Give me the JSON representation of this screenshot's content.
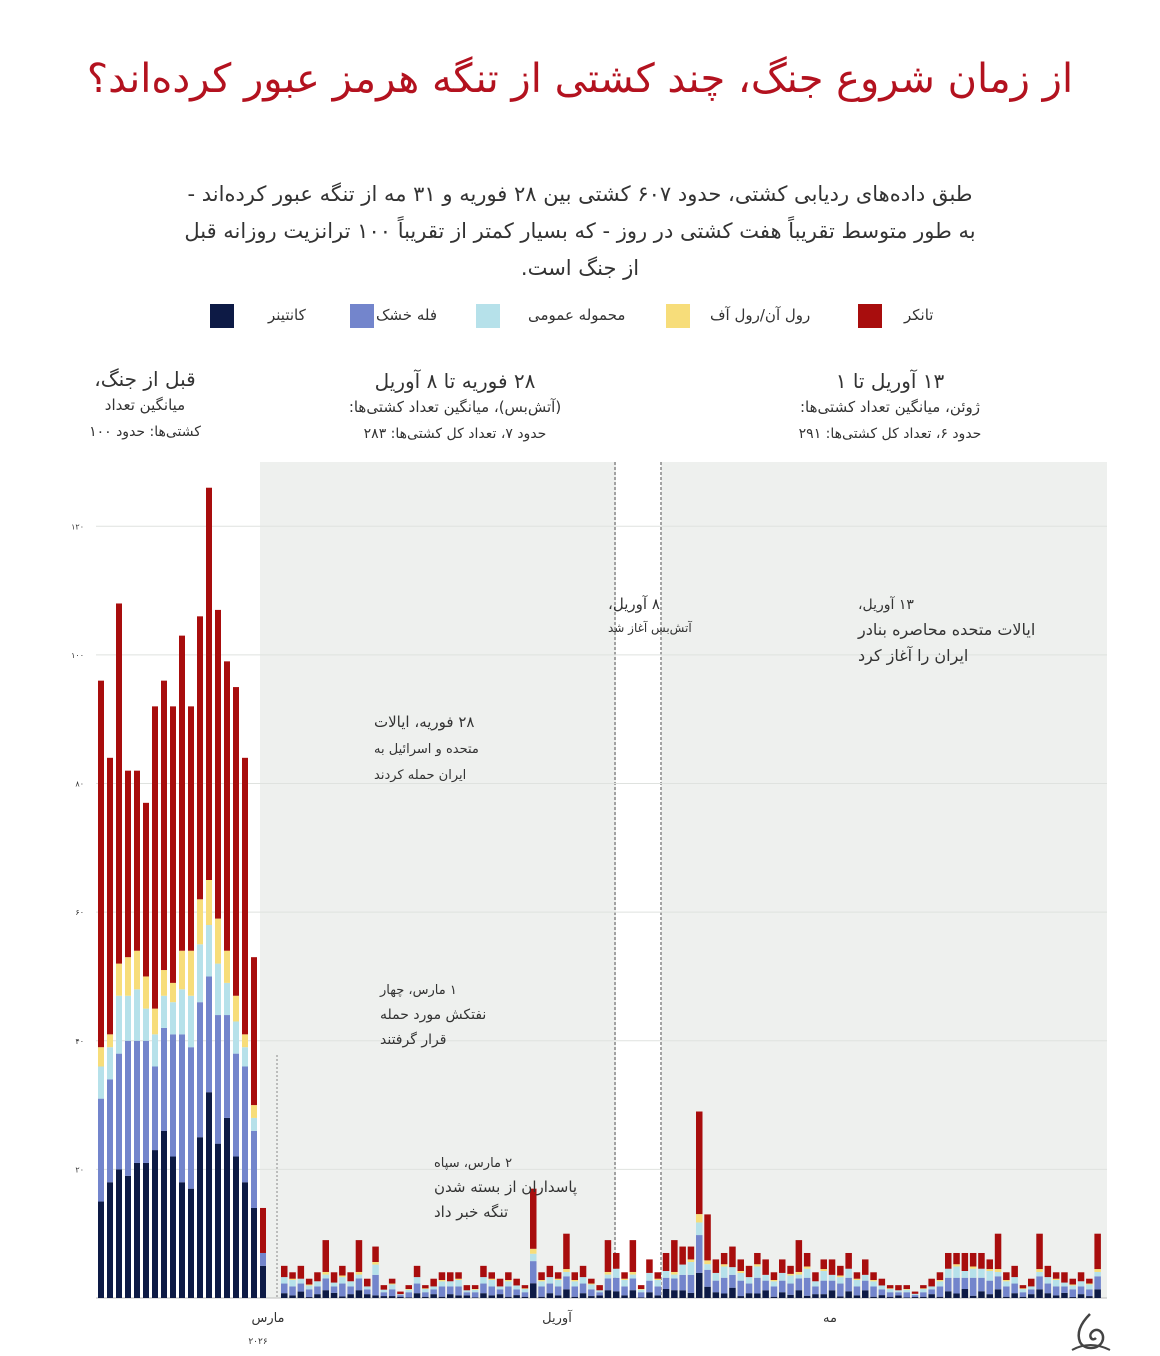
{
  "title": "از زمان شروع جنگ، چند کشتی از تنگه هرمز عبور کرده‌اند؟",
  "subtitle": "طبق داده‌های ردیابی کشتی، حدود ۶۰۷ کشتی بین ۲۸ فوریه و ۳۱ مه از تنگه عبور کرده‌اند - به طور متوسط تقریباً هفت کشتی در روز - که بسیار کمتر از تقریباً ۱۰۰ ترانزیت روزانه قبل از جنگ است.",
  "legend": [
    {
      "label": "تانکر",
      "color": "#a80d0d"
    },
    {
      "label": "رول آن/رول آف",
      "color": "#f7dd7a"
    },
    {
      "label": "محموله عمومی",
      "color": "#b6e1ea"
    },
    {
      "label": "فله خشک",
      "color": "#7385cc"
    },
    {
      "label": "کانتینر",
      "color": "#0d1a45"
    }
  ],
  "periods": [
    {
      "line1": "قبل از جنگ،",
      "line2": "میانگین تعداد",
      "line3": "کشتی‌ها: حدود ۱۰۰"
    },
    {
      "line1": "۲۸ فوریه تا ۸ آوریل",
      "line2": "(آتش‌بس)، میانگین تعداد کشتی‌ها:",
      "line3": "حدود ۷، تعداد کل کشتی‌ها: ۲۸۳"
    },
    {
      "line1": "۱۳ آوریل تا ۱",
      "line2": "ژوئن، میانگین تعداد کشتی‌ها:",
      "line3": "حدود ۶، تعداد کل کشتی‌ها: ۲۹۱"
    }
  ],
  "annotations": {
    "feb28": [
      "۲۸ فوریه، ایالات",
      "متحده و اسرائیل به",
      "ایران حمله کردند"
    ],
    "mar1": [
      "۱ مارس، چهار",
      "نفتکش مورد حمله",
      "قرار گرفتند"
    ],
    "mar2": [
      "۲ مارس، سپاه",
      "پاسداران از بسته شدن",
      "تنگه خبر داد"
    ],
    "apr8": [
      "۸ آوریل،",
      "آتش‌بس آغاز شد"
    ],
    "apr13": [
      "۱۳ آوریل،",
      "ایالات متحده محاصره بنادر",
      "ایران را آغاز کرد"
    ]
  },
  "chart_data": {
    "type": "bar",
    "stacked": true,
    "x_tick_labels": [
      "مارس",
      "آوریل",
      "مه"
    ],
    "x_tick_sublabel": "۲۰۲۶",
    "y_tick_labels": [
      "۲۰",
      "۴۰",
      "۶۰",
      "۸۰",
      "۱۰۰",
      "۱۲۰"
    ],
    "y_ticks": [
      20,
      40,
      60,
      80,
      100,
      120
    ],
    "ylim": [
      0,
      130
    ],
    "grid": true,
    "stack_order": [
      "کانتینر",
      "فله خشک",
      "محموله عمومی",
      "رول آن/رول آف",
      "تانکر"
    ],
    "stack_colors": [
      "#0d1a45",
      "#7385cc",
      "#b6e1ea",
      "#f7dd7a",
      "#a80d0d"
    ],
    "pre_war_bars": [
      [
        15,
        16,
        5,
        3,
        57
      ],
      [
        18,
        16,
        5,
        2,
        43
      ],
      [
        20,
        18,
        9,
        5,
        56
      ],
      [
        19,
        21,
        7,
        6,
        29
      ],
      [
        21,
        19,
        8,
        6,
        28
      ],
      [
        21,
        19,
        5,
        5,
        27
      ],
      [
        23,
        13,
        5,
        4,
        47
      ],
      [
        26,
        16,
        5,
        4,
        45
      ],
      [
        22,
        19,
        5,
        3,
        43
      ],
      [
        18,
        23,
        7,
        6,
        49
      ],
      [
        17,
        22,
        8,
        7,
        38
      ],
      [
        25,
        21,
        9,
        7,
        44
      ],
      [
        32,
        18,
        8,
        7,
        61
      ],
      [
        24,
        20,
        8,
        7,
        48
      ],
      [
        28,
        16,
        5,
        5,
        45
      ],
      [
        22,
        16,
        5,
        4,
        48
      ],
      [
        18,
        18,
        3,
        2,
        43
      ],
      [
        14,
        12,
        2,
        2,
        23
      ],
      [
        5,
        2,
        0,
        0,
        7
      ]
    ],
    "post_war_totals": [
      5,
      4,
      5,
      3,
      4,
      9,
      4,
      5,
      4,
      9,
      3,
      8,
      2,
      3,
      1,
      2,
      5,
      2,
      3,
      4,
      4,
      4,
      2,
      2,
      5,
      4,
      3,
      4,
      3,
      2,
      17,
      4,
      5,
      4,
      10,
      4,
      5,
      3,
      2,
      9,
      7,
      4,
      9,
      2,
      6,
      4,
      7,
      9,
      8,
      8,
      29,
      13,
      6,
      7,
      8,
      6,
      5,
      7,
      6,
      4,
      6,
      5,
      9,
      7,
      4,
      6,
      6,
      5,
      7,
      4,
      6,
      4,
      3,
      2,
      2,
      2,
      1,
      2,
      3,
      4,
      7,
      7,
      7,
      7,
      7,
      6,
      10,
      4,
      5,
      2,
      3,
      10,
      5,
      4,
      4,
      3,
      4,
      3,
      10
    ],
    "period_averages": [
      {
        "period": "pre-war",
        "average_ships": 100
      },
      {
        "period": "2026-02-28 to 2026-04-08",
        "average_ships": 7,
        "total_ships": 283
      },
      {
        "period": "2026-04-13 to 2026-06-01",
        "average_ships": 6,
        "total_ships": 291
      }
    ]
  }
}
